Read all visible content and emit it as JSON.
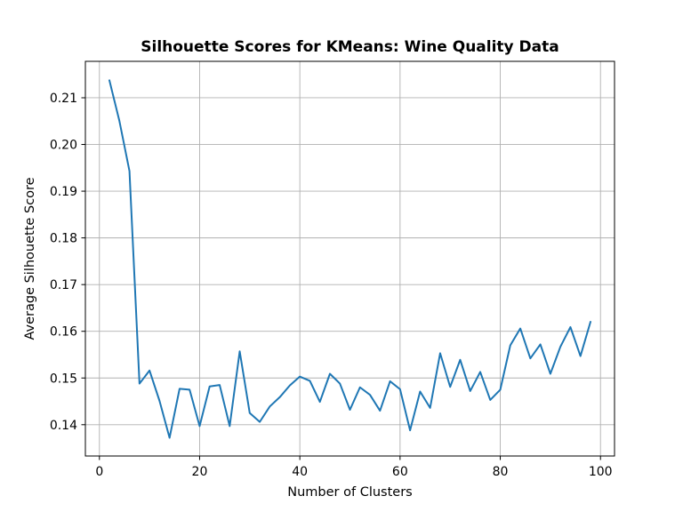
{
  "chart_data": {
    "type": "line",
    "title": "Silhouette Scores for KMeans: Wine Quality Data",
    "xlabel": "Number of Clusters",
    "ylabel": "Average Silhouette Score",
    "xlim": [
      -2.8,
      102.8
    ],
    "ylim": [
      0.1333,
      0.2178
    ],
    "xticks": [
      0,
      20,
      40,
      60,
      80,
      100
    ],
    "yticks": [
      0.14,
      0.15,
      0.16,
      0.17,
      0.18,
      0.19,
      0.2,
      0.21
    ],
    "ytick_labels": [
      "0.14",
      "0.15",
      "0.16",
      "0.17",
      "0.18",
      "0.19",
      "0.20",
      "0.21"
    ],
    "grid": true,
    "line_color": "#1f77b4",
    "series": [
      {
        "x": [
          2,
          4,
          6,
          8,
          10,
          12,
          14,
          16,
          18,
          20,
          22,
          24,
          26,
          28,
          30,
          32,
          34,
          36,
          38,
          40,
          42,
          44,
          46,
          48,
          50,
          52,
          54,
          56,
          58,
          60,
          62,
          64,
          66,
          68,
          70,
          72,
          74,
          76,
          78,
          80,
          82,
          84,
          86,
          88,
          90,
          92,
          94,
          96,
          98
        ],
        "values": [
          0.2137,
          0.205,
          0.1943,
          0.1488,
          0.1516,
          0.1451,
          0.1372,
          0.1477,
          0.1475,
          0.1397,
          0.1482,
          0.1485,
          0.1397,
          0.1557,
          0.1425,
          0.1406,
          0.1439,
          0.1459,
          0.1484,
          0.1503,
          0.1494,
          0.1449,
          0.1509,
          0.1488,
          0.1432,
          0.148,
          0.1464,
          0.143,
          0.1493,
          0.1476,
          0.1388,
          0.1471,
          0.1436,
          0.1553,
          0.1481,
          0.1539,
          0.1472,
          0.1513,
          0.1453,
          0.1475,
          0.157,
          0.1606,
          0.1542,
          0.1572,
          0.1509,
          0.1567,
          0.1609,
          0.1547,
          0.162
        ]
      }
    ]
  }
}
